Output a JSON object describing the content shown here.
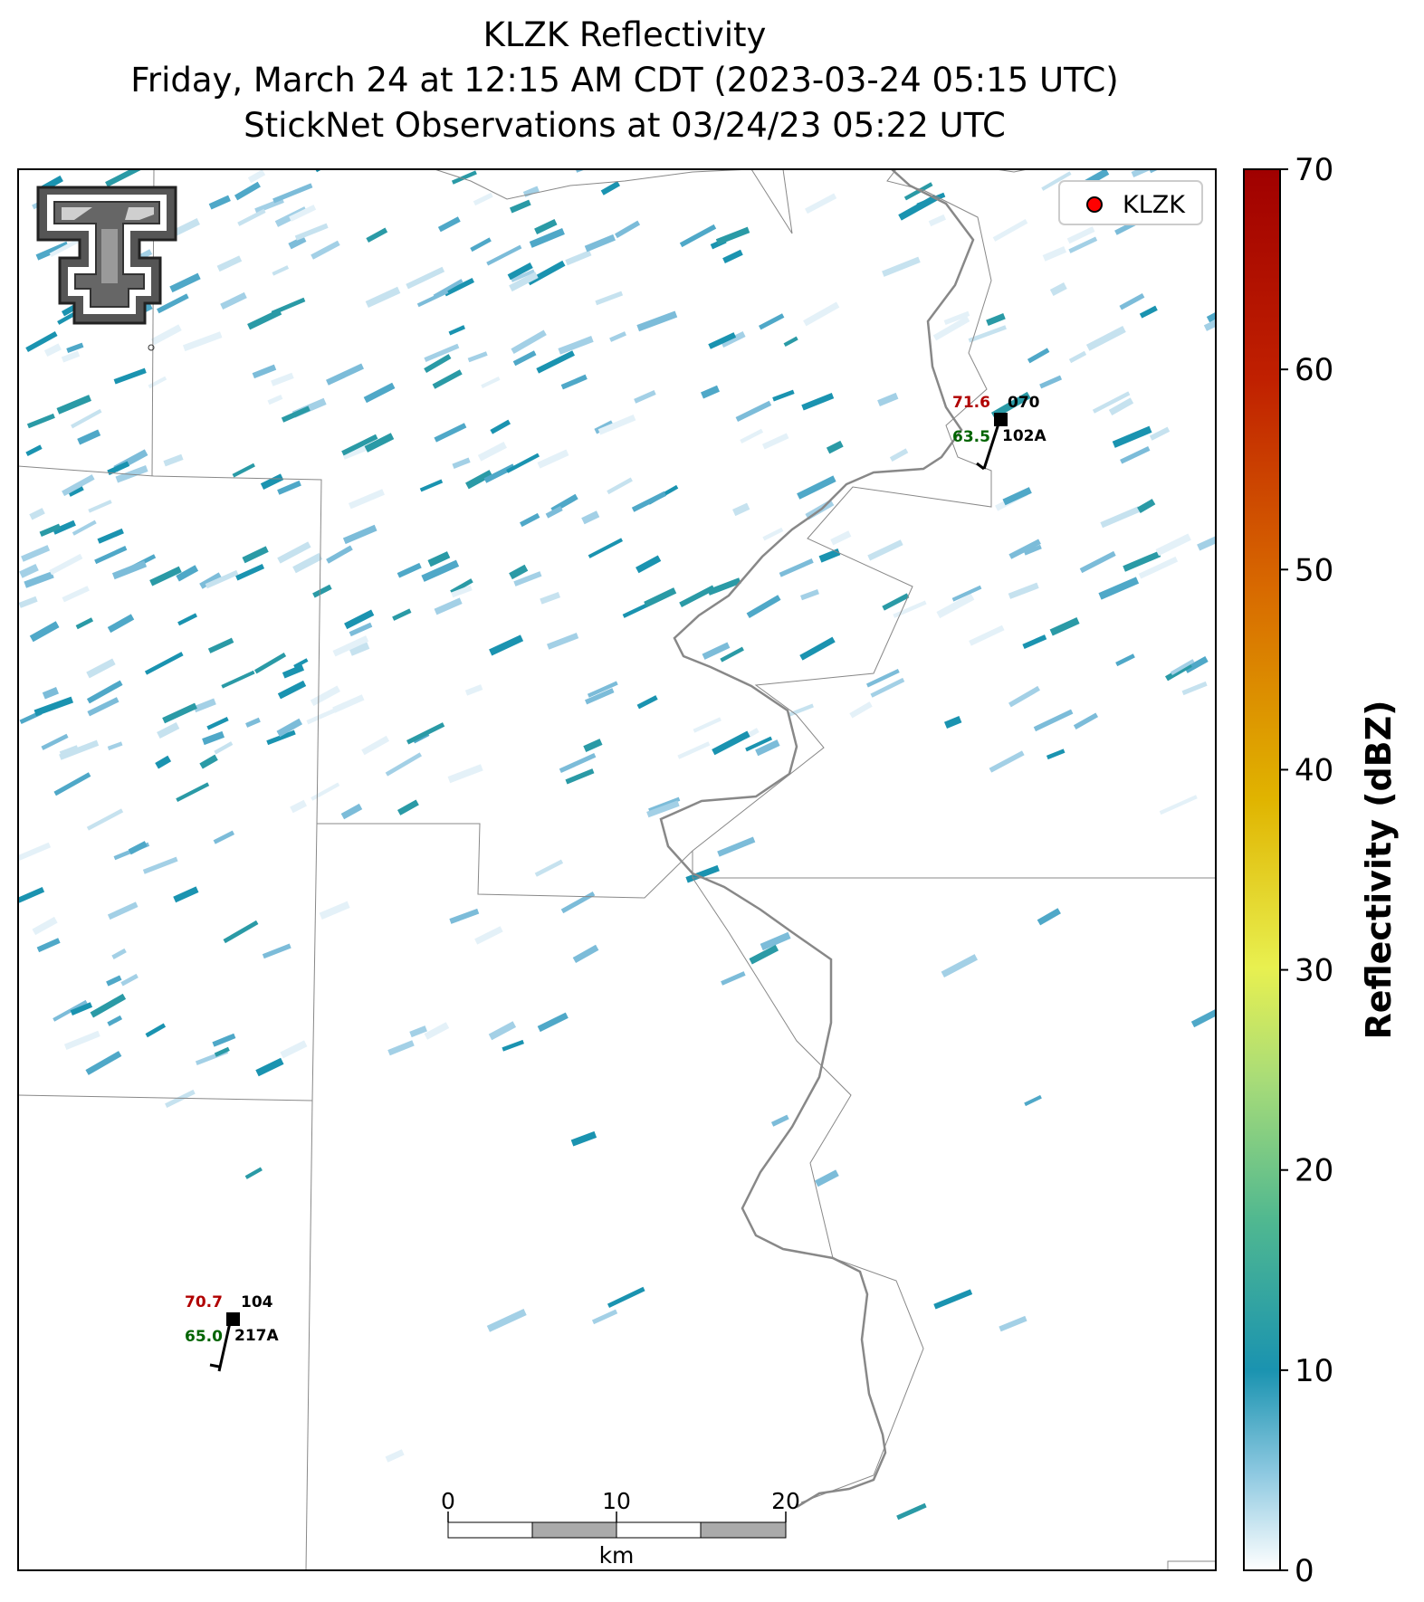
{
  "title": {
    "line1": "KLZK Reflectivity",
    "line2": "Friday, March 24 at 12:15 AM CDT (2023-03-24 05:15 UTC)",
    "line3": "StickNet Observations at 03/24/23 05:22 UTC"
  },
  "legend": {
    "label": "KLZK",
    "marker_color": "#ff0000"
  },
  "colorbar": {
    "label": "Reflectivity (dBZ)",
    "min": 0,
    "max": 70,
    "ticks": [
      "0",
      "10",
      "20",
      "30",
      "40",
      "50",
      "60",
      "70"
    ],
    "colors": [
      "#ffffff",
      "#1a93b0",
      "#7cc87c",
      "#e8f050",
      "#e0b400",
      "#d86a00",
      "#c02000",
      "#a00000"
    ]
  },
  "scale_bar": {
    "ticks": [
      "0",
      "10",
      "20"
    ],
    "unit": "km"
  },
  "stations": [
    {
      "id": "070",
      "probe": "102A",
      "temp": "71.6",
      "dewpoint": "63.5",
      "temp_color": "#b00000",
      "dew_color": "#006400"
    },
    {
      "id": "104",
      "probe": "217A",
      "temp": "70.7",
      "dewpoint": "65.0",
      "temp_color": "#b00000",
      "dew_color": "#006400"
    }
  ],
  "logo": "texas-tech-double-t-logo"
}
